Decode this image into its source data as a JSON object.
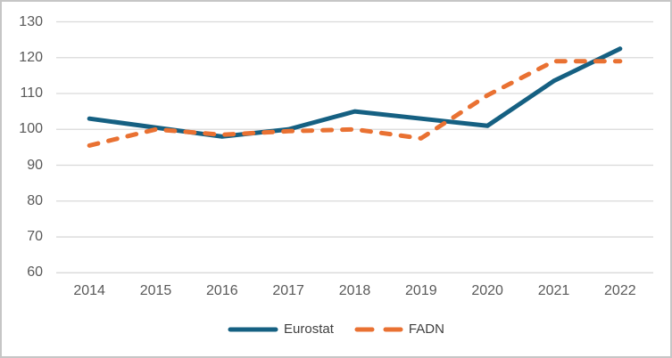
{
  "chart_data": {
    "type": "line",
    "categories": [
      "2014",
      "2015",
      "2016",
      "2017",
      "2018",
      "2019",
      "2020",
      "2021",
      "2022"
    ],
    "series": [
      {
        "name": "Eurostat",
        "values": [
          103,
          100.5,
          98,
          100,
          105,
          103,
          101,
          113.5,
          122.5
        ],
        "color": "#156082",
        "line_style": "solid"
      },
      {
        "name": "FADN",
        "values": [
          95.5,
          100,
          98.5,
          99.5,
          100,
          97.5,
          109.5,
          119,
          119
        ],
        "color": "#E97132",
        "line_style": "dashed"
      }
    ],
    "ylim": [
      60,
      130
    ],
    "yticks": [
      60,
      70,
      80,
      90,
      100,
      110,
      120,
      130
    ],
    "grid": "horizontal-only",
    "legend_position": "bottom-center"
  },
  "colors": {
    "eurostat_line": "#156082",
    "fadn_line": "#E97132",
    "gridline": "#D9D9D9",
    "axis_label_text": "#595959",
    "legend_text": "#404040",
    "chart_border": "#C6C6C6",
    "background": "#FFFFFF"
  }
}
